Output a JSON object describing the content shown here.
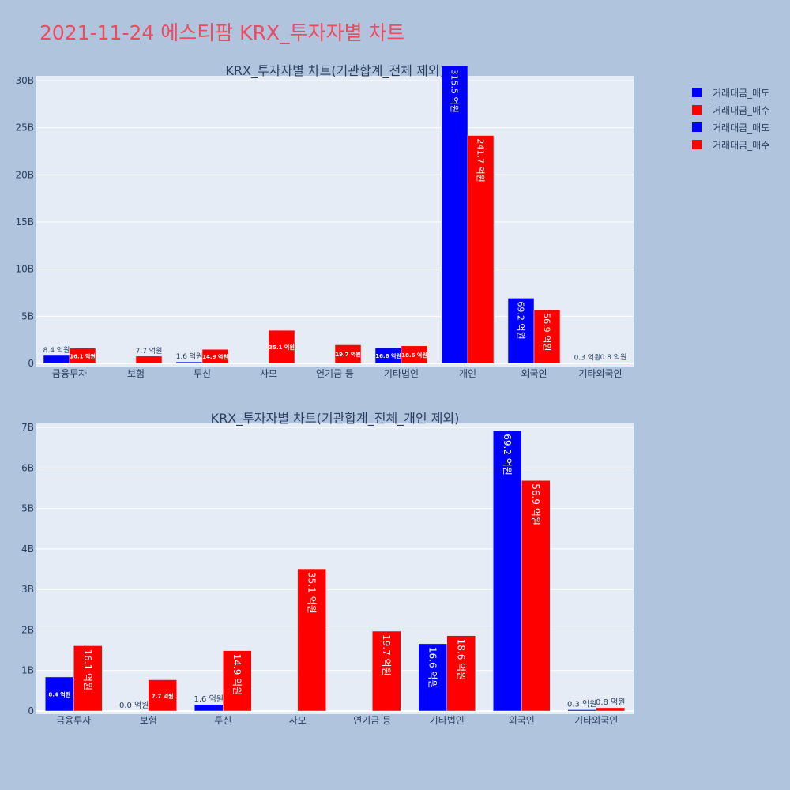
{
  "title": "2021-11-24 에스티팜 KRX_투자자별 차트",
  "legend": [
    {
      "name": "거래대금_매도",
      "color": "#0000ff"
    },
    {
      "name": "거래대금_매수",
      "color": "#ff0000"
    },
    {
      "name": "거래대금_매도",
      "color": "#0000ff"
    },
    {
      "name": "거래대금_매수",
      "color": "#ff0000"
    }
  ],
  "chart_data": [
    {
      "type": "bar",
      "title": "KRX_투자자별 차트(기관합계_전체 제외)",
      "categories": [
        "금융투자",
        "보험",
        "투신",
        "사모",
        "연기금 등",
        "기타법인",
        "개인",
        "외국인",
        "기타외국인"
      ],
      "yticks": [
        "0",
        "5B",
        "10B",
        "15B",
        "20B",
        "25B",
        "30B"
      ],
      "ytick_values": [
        0,
        5,
        10,
        15,
        20,
        25,
        30
      ],
      "ylim": [
        0,
        30.5
      ],
      "series": [
        {
          "name": "거래대금_매도",
          "color": "#0000ff",
          "values": [
            0.84,
            null,
            0.16,
            null,
            null,
            1.66,
            31.55,
            6.92,
            0.03
          ],
          "labels": [
            "8.4 억원",
            "",
            "1.6 억원",
            "",
            "",
            "16.6 억원",
            "315.5 억원",
            "69.2 억원",
            "0.3 억원"
          ]
        },
        {
          "name": "거래대금_매수",
          "color": "#ff0000",
          "values": [
            1.61,
            0.77,
            1.49,
            3.51,
            1.97,
            1.86,
            24.17,
            5.69,
            0.08
          ],
          "labels": [
            "16.1 억원",
            "7.7 억원",
            "14.9 억원",
            "35.1 억원",
            "19.7 억원",
            "18.6 억원",
            "241.7 억원",
            "56.9 억원",
            "0.8 억원"
          ]
        }
      ]
    },
    {
      "type": "bar",
      "title": "KRX_투자자별 차트(기관합계_전체_개인 제외)",
      "categories": [
        "금융투자",
        "보험",
        "투신",
        "사모",
        "연기금 등",
        "기타법인",
        "외국인",
        "기타외국인"
      ],
      "yticks": [
        "0",
        "1B",
        "2B",
        "3B",
        "4B",
        "5B",
        "6B",
        "7B"
      ],
      "ytick_values": [
        0,
        1,
        2,
        3,
        4,
        5,
        6,
        7
      ],
      "ylim": [
        0,
        7.1
      ],
      "series": [
        {
          "name": "거래대금_매도",
          "color": "#0000ff",
          "values": [
            0.84,
            0.0,
            0.16,
            null,
            null,
            1.66,
            6.92,
            0.03
          ],
          "labels": [
            "8.4 억원",
            "0.0 억원",
            "1.6 억원",
            "",
            "",
            "16.6 억원",
            "69.2 억원",
            "0.3 억원"
          ]
        },
        {
          "name": "거래대금_매수",
          "color": "#ff0000",
          "values": [
            1.61,
            0.77,
            1.49,
            3.51,
            1.97,
            1.86,
            5.69,
            0.08
          ],
          "labels": [
            "16.1 억원",
            "7.7 억원",
            "14.9 억원",
            "35.1 억원",
            "19.7 억원",
            "18.6 억원",
            "56.9 억원",
            "0.8 억원"
          ]
        }
      ]
    }
  ]
}
